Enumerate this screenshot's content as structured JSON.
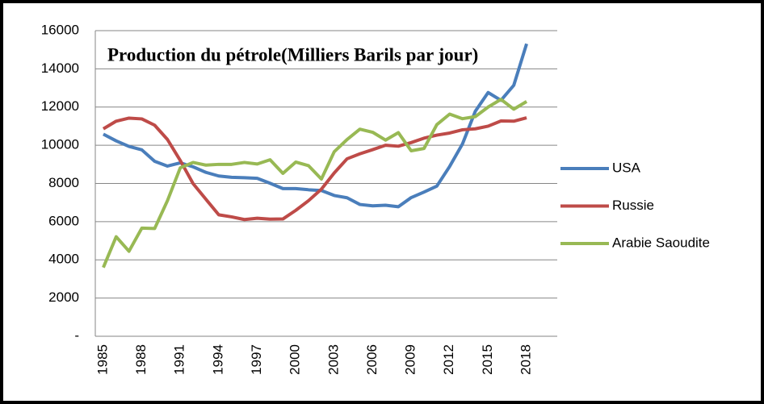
{
  "chart_data": {
    "type": "line",
    "title": "Production du pétrole(Milliers Barils par jour)",
    "categories": [
      "1985",
      null,
      null,
      "1988",
      null,
      null,
      "1991",
      null,
      null,
      "1994",
      null,
      null,
      "1997",
      null,
      null,
      "2000",
      null,
      null,
      "2003",
      null,
      null,
      "2006",
      null,
      null,
      "2009",
      null,
      null,
      "2012",
      null,
      null,
      "2015",
      null,
      null,
      "2018"
    ],
    "series": [
      {
        "name": "USA",
        "color": "#4a7ebb",
        "values": [
          10580,
          10230,
          9940,
          9760,
          9160,
          8910,
          9080,
          8870,
          8580,
          8390,
          8320,
          8300,
          8270,
          8010,
          7730,
          7730,
          7670,
          7630,
          7370,
          7250,
          6900,
          6830,
          6860,
          6780,
          7260,
          7550,
          7860,
          8890,
          10070,
          11780,
          12760,
          12350,
          13140,
          15310
        ]
      },
      {
        "name": "Russie",
        "color": "#be4b48",
        "values": [
          10860,
          11260,
          11420,
          11380,
          11050,
          10300,
          9200,
          7990,
          7170,
          6360,
          6250,
          6110,
          6180,
          6130,
          6140,
          6590,
          7100,
          7700,
          8550,
          9290,
          9550,
          9770,
          10000,
          9950,
          10140,
          10370,
          10530,
          10640,
          10810,
          10860,
          11000,
          11270,
          11260,
          11440
        ]
      },
      {
        "name": "Arabie Saoudite",
        "color": "#98b954",
        "values": [
          3600,
          5210,
          4450,
          5660,
          5640,
          7100,
          8820,
          9100,
          8960,
          9000,
          9000,
          9100,
          9020,
          9240,
          8530,
          9120,
          8930,
          8230,
          9660,
          10300,
          10840,
          10680,
          10270,
          10660,
          9710,
          9830,
          11080,
          11630,
          11390,
          11500,
          12000,
          12400,
          11890,
          12290
        ]
      }
    ],
    "ylim": [
      0,
      16000
    ],
    "yticks": [
      {
        "value": 0,
        "label": "-"
      },
      2000,
      4000,
      6000,
      8000,
      10000,
      12000,
      14000,
      16000
    ],
    "grid": true,
    "legend": "right"
  }
}
